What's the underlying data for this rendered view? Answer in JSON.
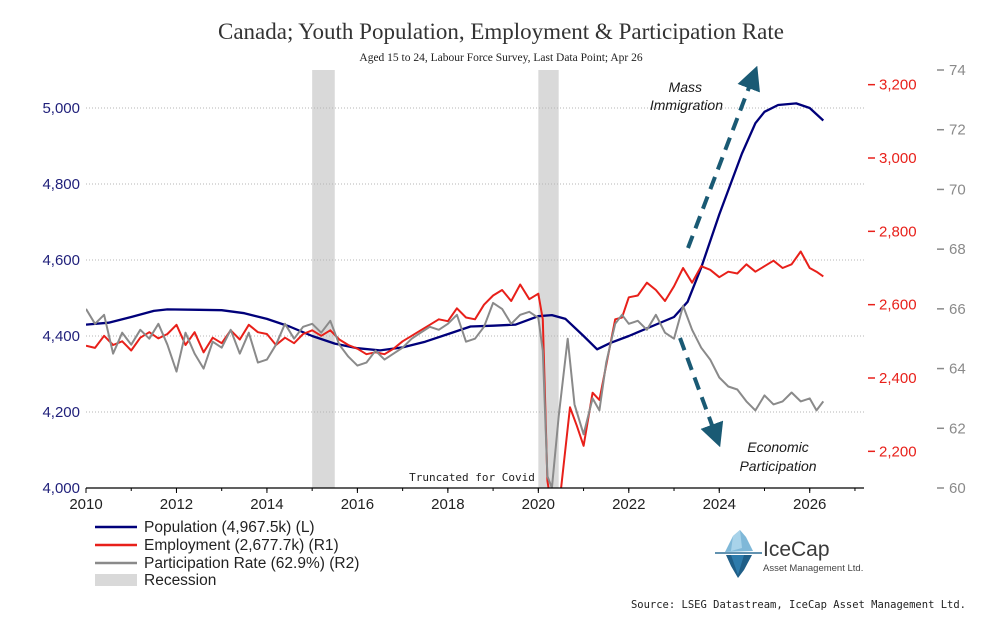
{
  "chart_data": {
    "type": "line",
    "title": "Canada; Youth Population, Employment & Participation Rate",
    "subtitle": "Aged 15 to 24, Labour Force Survey, Last Data Point; Apr 26",
    "x_ticks": [
      "2010",
      "2012",
      "2014",
      "2016",
      "2018",
      "2020",
      "2022",
      "2024",
      "2026"
    ],
    "xlim": [
      2010,
      2027.2
    ],
    "axes": {
      "left": {
        "ylim": [
          4000,
          5100
        ],
        "ticks": [
          "4,000",
          "4,200",
          "4,400",
          "4,600",
          "4,800",
          "5,000"
        ],
        "color": "#1f1f7a"
      },
      "right1": {
        "ylim": [
          2100,
          3240
        ],
        "ticks": [
          "2,200",
          "2,400",
          "2,600",
          "2,800",
          "3,000",
          "3,200"
        ],
        "color": "#e8201a"
      },
      "right2": {
        "ylim": [
          60,
          74
        ],
        "ticks": [
          "60",
          "62",
          "64",
          "66",
          "68",
          "70",
          "72",
          "74"
        ],
        "color": "#8a8a8a"
      }
    },
    "recessions": [
      [
        2015.0,
        2015.5
      ],
      [
        2020.0,
        2020.45
      ]
    ],
    "series": [
      {
        "name": "Population (4,967.5k) (L)",
        "axis": "left",
        "color": "#00007a",
        "points": [
          [
            2010.0,
            4430
          ],
          [
            2010.5,
            4435
          ],
          [
            2011.0,
            4450
          ],
          [
            2011.5,
            4466
          ],
          [
            2011.8,
            4470
          ],
          [
            2012.5,
            4469
          ],
          [
            2013.0,
            4468
          ],
          [
            2013.5,
            4460
          ],
          [
            2014.0,
            4445
          ],
          [
            2014.5,
            4425
          ],
          [
            2015.0,
            4400
          ],
          [
            2015.5,
            4380
          ],
          [
            2016.0,
            4368
          ],
          [
            2016.5,
            4362
          ],
          [
            2017.0,
            4370
          ],
          [
            2017.5,
            4385
          ],
          [
            2018.0,
            4405
          ],
          [
            2018.5,
            4425
          ],
          [
            2019.0,
            4427
          ],
          [
            2019.5,
            4430
          ],
          [
            2020.0,
            4452
          ],
          [
            2020.3,
            4455
          ],
          [
            2020.6,
            4445
          ],
          [
            2021.0,
            4400
          ],
          [
            2021.3,
            4365
          ],
          [
            2021.6,
            4382
          ],
          [
            2022.0,
            4400
          ],
          [
            2022.5,
            4425
          ],
          [
            2023.0,
            4450
          ],
          [
            2023.3,
            4490
          ],
          [
            2023.6,
            4580
          ],
          [
            2024.0,
            4720
          ],
          [
            2024.5,
            4880
          ],
          [
            2024.8,
            4960
          ],
          [
            2025.0,
            4990
          ],
          [
            2025.3,
            5008
          ],
          [
            2025.7,
            5012
          ],
          [
            2026.0,
            5000
          ],
          [
            2026.3,
            4967
          ]
        ]
      },
      {
        "name": "Employment (2,677.7k) (R1)",
        "axis": "right1",
        "color": "#e8201a",
        "points": [
          [
            2010.0,
            2488
          ],
          [
            2010.2,
            2482
          ],
          [
            2010.4,
            2515
          ],
          [
            2010.6,
            2490
          ],
          [
            2010.8,
            2500
          ],
          [
            2011.0,
            2475
          ],
          [
            2011.2,
            2510
          ],
          [
            2011.4,
            2525
          ],
          [
            2011.6,
            2508
          ],
          [
            2011.8,
            2520
          ],
          [
            2012.0,
            2545
          ],
          [
            2012.2,
            2490
          ],
          [
            2012.4,
            2525
          ],
          [
            2012.6,
            2470
          ],
          [
            2012.8,
            2510
          ],
          [
            2013.0,
            2495
          ],
          [
            2013.2,
            2530
          ],
          [
            2013.4,
            2505
          ],
          [
            2013.6,
            2545
          ],
          [
            2013.8,
            2525
          ],
          [
            2014.0,
            2520
          ],
          [
            2014.2,
            2490
          ],
          [
            2014.4,
            2510
          ],
          [
            2014.6,
            2495
          ],
          [
            2014.8,
            2520
          ],
          [
            2015.0,
            2530
          ],
          [
            2015.2,
            2515
          ],
          [
            2015.4,
            2530
          ],
          [
            2015.6,
            2505
          ],
          [
            2015.8,
            2490
          ],
          [
            2016.0,
            2480
          ],
          [
            2016.2,
            2465
          ],
          [
            2016.4,
            2470
          ],
          [
            2016.6,
            2465
          ],
          [
            2016.8,
            2480
          ],
          [
            2017.0,
            2500
          ],
          [
            2017.2,
            2515
          ],
          [
            2017.4,
            2530
          ],
          [
            2017.6,
            2545
          ],
          [
            2017.8,
            2560
          ],
          [
            2018.0,
            2555
          ],
          [
            2018.2,
            2590
          ],
          [
            2018.4,
            2565
          ],
          [
            2018.6,
            2560
          ],
          [
            2018.8,
            2600
          ],
          [
            2019.0,
            2625
          ],
          [
            2019.2,
            2640
          ],
          [
            2019.4,
            2610
          ],
          [
            2019.6,
            2655
          ],
          [
            2019.8,
            2615
          ],
          [
            2020.0,
            2630
          ],
          [
            2020.1,
            2560
          ],
          [
            2020.2,
            2120
          ],
          [
            2020.35,
            2000
          ],
          [
            2020.5,
            2095
          ],
          [
            2020.7,
            2320
          ],
          [
            2020.85,
            2270
          ],
          [
            2021.0,
            2215
          ],
          [
            2021.2,
            2360
          ],
          [
            2021.35,
            2340
          ],
          [
            2021.5,
            2435
          ],
          [
            2021.7,
            2560
          ],
          [
            2021.85,
            2565
          ],
          [
            2022.0,
            2620
          ],
          [
            2022.2,
            2625
          ],
          [
            2022.4,
            2660
          ],
          [
            2022.6,
            2640
          ],
          [
            2022.8,
            2610
          ],
          [
            2023.0,
            2650
          ],
          [
            2023.2,
            2700
          ],
          [
            2023.4,
            2660
          ],
          [
            2023.6,
            2705
          ],
          [
            2023.8,
            2695
          ],
          [
            2024.0,
            2675
          ],
          [
            2024.2,
            2690
          ],
          [
            2024.4,
            2685
          ],
          [
            2024.6,
            2710
          ],
          [
            2024.8,
            2690
          ],
          [
            2025.0,
            2705
          ],
          [
            2025.2,
            2720
          ],
          [
            2025.4,
            2700
          ],
          [
            2025.6,
            2710
          ],
          [
            2025.8,
            2745
          ],
          [
            2026.0,
            2700
          ],
          [
            2026.15,
            2690
          ],
          [
            2026.3,
            2677
          ]
        ]
      },
      {
        "name": "Participation Rate (62.9%) (R2)",
        "axis": "right2",
        "color": "#8a8a8a",
        "points": [
          [
            2010.0,
            66.0
          ],
          [
            2010.2,
            65.5
          ],
          [
            2010.4,
            65.8
          ],
          [
            2010.6,
            64.5
          ],
          [
            2010.8,
            65.2
          ],
          [
            2011.0,
            64.8
          ],
          [
            2011.2,
            65.3
          ],
          [
            2011.4,
            65.0
          ],
          [
            2011.6,
            65.5
          ],
          [
            2011.8,
            64.8
          ],
          [
            2012.0,
            63.9
          ],
          [
            2012.2,
            65.2
          ],
          [
            2012.4,
            64.5
          ],
          [
            2012.6,
            64.0
          ],
          [
            2012.8,
            64.9
          ],
          [
            2013.0,
            64.7
          ],
          [
            2013.2,
            65.3
          ],
          [
            2013.4,
            64.5
          ],
          [
            2013.6,
            65.2
          ],
          [
            2013.8,
            64.2
          ],
          [
            2014.0,
            64.3
          ],
          [
            2014.2,
            64.8
          ],
          [
            2014.4,
            65.5
          ],
          [
            2014.6,
            65.0
          ],
          [
            2014.8,
            65.4
          ],
          [
            2015.0,
            65.5
          ],
          [
            2015.2,
            65.2
          ],
          [
            2015.4,
            65.6
          ],
          [
            2015.6,
            64.8
          ],
          [
            2015.8,
            64.4
          ],
          [
            2016.0,
            64.1
          ],
          [
            2016.2,
            64.2
          ],
          [
            2016.4,
            64.6
          ],
          [
            2016.6,
            64.3
          ],
          [
            2016.8,
            64.5
          ],
          [
            2017.0,
            64.7
          ],
          [
            2017.2,
            65.0
          ],
          [
            2017.4,
            65.2
          ],
          [
            2017.6,
            65.4
          ],
          [
            2017.8,
            65.3
          ],
          [
            2018.0,
            65.5
          ],
          [
            2018.2,
            65.8
          ],
          [
            2018.4,
            64.9
          ],
          [
            2018.6,
            65.0
          ],
          [
            2018.8,
            65.4
          ],
          [
            2019.0,
            66.2
          ],
          [
            2019.2,
            66.0
          ],
          [
            2019.4,
            65.5
          ],
          [
            2019.6,
            65.8
          ],
          [
            2019.8,
            65.9
          ],
          [
            2020.0,
            65.7
          ],
          [
            2020.1,
            64.6
          ],
          [
            2020.2,
            60.4
          ],
          [
            2020.3,
            60.0
          ],
          [
            2020.45,
            62.4
          ],
          [
            2020.65,
            65.0
          ],
          [
            2020.8,
            62.8
          ],
          [
            2021.0,
            61.8
          ],
          [
            2021.2,
            63.0
          ],
          [
            2021.35,
            62.6
          ],
          [
            2021.5,
            64.2
          ],
          [
            2021.7,
            65.5
          ],
          [
            2021.85,
            65.8
          ],
          [
            2022.0,
            65.5
          ],
          [
            2022.2,
            65.6
          ],
          [
            2022.4,
            65.3
          ],
          [
            2022.6,
            65.8
          ],
          [
            2022.8,
            65.2
          ],
          [
            2023.0,
            65.0
          ],
          [
            2023.2,
            66.1
          ],
          [
            2023.4,
            65.3
          ],
          [
            2023.6,
            64.7
          ],
          [
            2023.8,
            64.3
          ],
          [
            2024.0,
            63.7
          ],
          [
            2024.2,
            63.4
          ],
          [
            2024.4,
            63.3
          ],
          [
            2024.6,
            62.9
          ],
          [
            2024.8,
            62.6
          ],
          [
            2025.0,
            63.1
          ],
          [
            2025.2,
            62.8
          ],
          [
            2025.4,
            62.9
          ],
          [
            2025.6,
            63.2
          ],
          [
            2025.8,
            62.9
          ],
          [
            2026.0,
            63.0
          ],
          [
            2026.15,
            62.6
          ],
          [
            2026.3,
            62.9
          ]
        ]
      }
    ],
    "annotations": {
      "mass_immigration_line1": "Mass",
      "mass_immigration_line2": "Immigration",
      "economic_participation_line1": "Economic",
      "economic_participation_line2": "Participation",
      "truncated_note": "Truncated for Covid"
    },
    "legend": [
      {
        "label": "Population (4,967.5k) (L)",
        "color": "#00007a",
        "kind": "line"
      },
      {
        "label": "Employment (2,677.7k) (R1)",
        "color": "#e8201a",
        "kind": "line"
      },
      {
        "label": "Participation Rate (62.9%) (R2)",
        "color": "#8a8a8a",
        "kind": "line"
      },
      {
        "label": "Recession",
        "color": "#d9d9d9",
        "kind": "box"
      }
    ],
    "legend_position": "bottom-left",
    "grid": "horizontal dotted",
    "source": "Source: LSEG Datastream, IceCap Asset Management Ltd.",
    "logo": {
      "name": "IceCap",
      "tagline": "Asset Management Ltd."
    }
  }
}
